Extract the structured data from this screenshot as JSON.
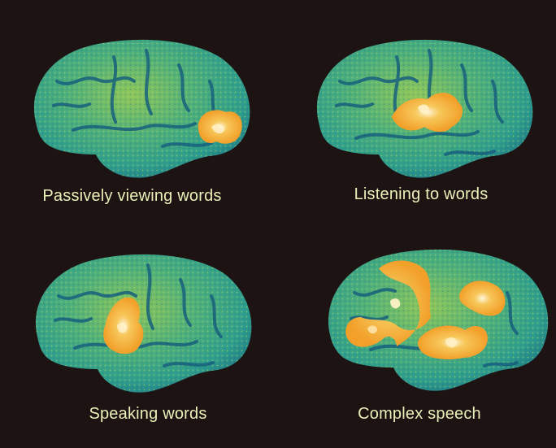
{
  "colors": {
    "background": "#1d1313",
    "brain_base": "#2f9e8c",
    "brain_light": "#8fc65a",
    "brain_dark": "#17607d",
    "activation": "#f2a02a",
    "activation_hot": "#fff1c8",
    "caption": "#e9f0b8"
  },
  "panels": [
    {
      "caption": "Passively viewing words",
      "icon": "brain-scan-occipital-activation"
    },
    {
      "caption": "Listening to words",
      "icon": "brain-scan-temporal-activation"
    },
    {
      "caption": "Speaking words",
      "icon": "brain-scan-motor-activation"
    },
    {
      "caption": "Complex speech",
      "icon": "brain-scan-widespread-activation"
    }
  ]
}
